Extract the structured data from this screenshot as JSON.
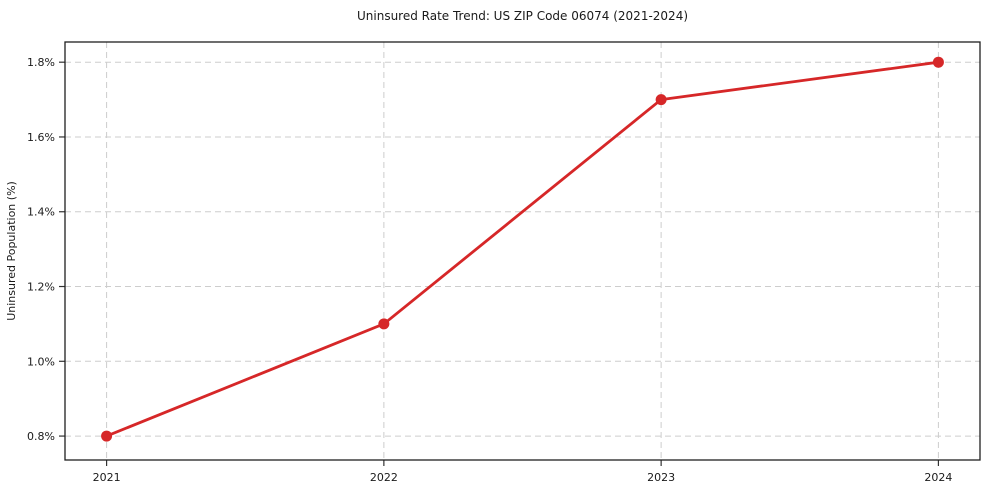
{
  "chart_data": {
    "type": "line",
    "title": "Uninsured Rate Trend: US ZIP Code 06074 (2021-2024)",
    "xlabel": "",
    "ylabel": "Uninsured Population (%)",
    "x": [
      2021,
      2022,
      2023,
      2024
    ],
    "series": [
      {
        "name": "Uninsured Population (%)",
        "values": [
          0.8,
          1.1,
          1.7,
          1.8
        ],
        "color": "#d62728",
        "marker": "circle"
      }
    ],
    "x_ticks": [
      {
        "value": 2021,
        "label": "2021"
      },
      {
        "value": 2022,
        "label": "2022"
      },
      {
        "value": 2023,
        "label": "2023"
      },
      {
        "value": 2024,
        "label": "2024"
      }
    ],
    "y_ticks": [
      {
        "value": 0.8,
        "label": "0.8%"
      },
      {
        "value": 1.0,
        "label": "1.0%"
      },
      {
        "value": 1.2,
        "label": "1.2%"
      },
      {
        "value": 1.4,
        "label": "1.4%"
      },
      {
        "value": 1.6,
        "label": "1.6%"
      },
      {
        "value": 1.8,
        "label": "1.8%"
      }
    ],
    "xlim": [
      2020.85,
      2024.15
    ],
    "ylim": [
      0.736,
      1.854
    ],
    "grid": true,
    "grid_style": "dashed",
    "legend": "none",
    "colors": {
      "line": "#d62728",
      "grid": "#cdcdcd",
      "spine": "#1f1f1f",
      "tick": "#333333",
      "text": "#1a1a1a",
      "background": "#ffffff"
    }
  }
}
